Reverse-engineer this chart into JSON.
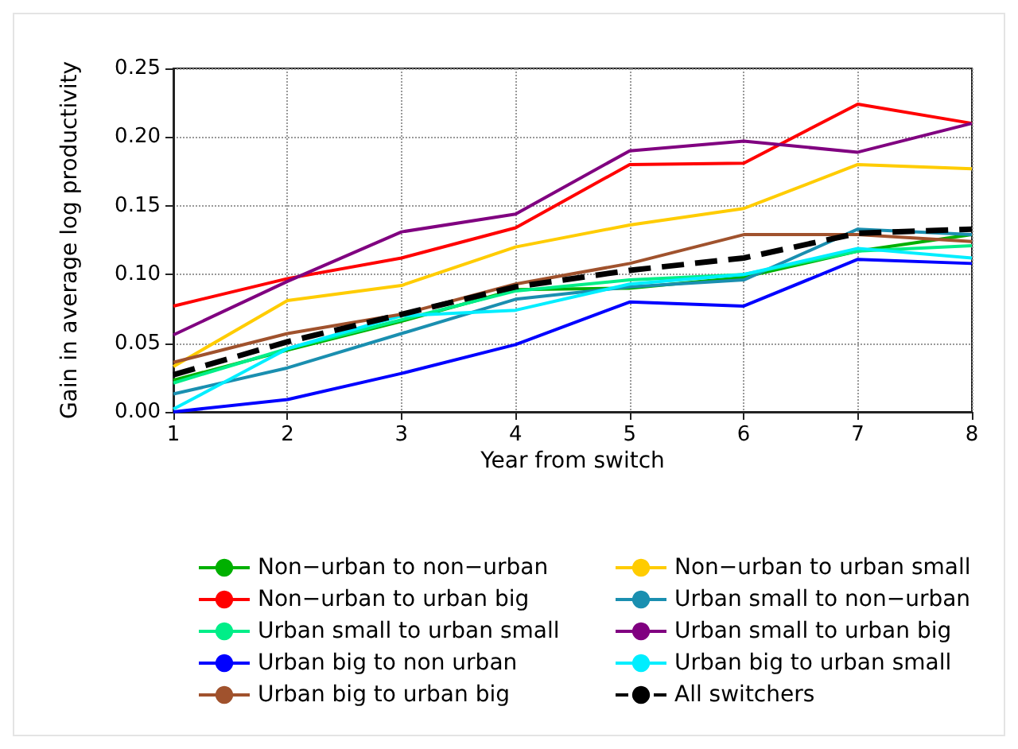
{
  "chart_data": {
    "type": "line",
    "xlabel": "Year from switch",
    "ylabel": "Gain in average log productivity",
    "x": [
      1,
      2,
      3,
      4,
      5,
      6,
      7,
      8
    ],
    "xlim": [
      1,
      8
    ],
    "xticks": [
      1,
      2,
      3,
      4,
      5,
      6,
      7,
      8
    ],
    "ylim": [
      0,
      0.25
    ],
    "yticks": [
      {
        "value": 0,
        "label": "0.00"
      },
      {
        "value": 0.05,
        "label": "0.05"
      },
      {
        "value": 0.1,
        "label": "0.10"
      },
      {
        "value": 0.15,
        "label": "0.15"
      },
      {
        "value": 0.2,
        "label": "0.20"
      },
      {
        "value": 0.25,
        "label": "0.25"
      }
    ],
    "grid": true,
    "legend": "bottom",
    "marker": "none",
    "series": [
      {
        "name": "Non−urban to non−urban",
        "color": "#00b000",
        "values": [
          0.023,
          0.045,
          0.066,
          0.089,
          0.09,
          0.098,
          0.117,
          0.129
        ]
      },
      {
        "name": "Non−urban to urban small",
        "color": "#ffcc00",
        "values": [
          0.033,
          0.081,
          0.092,
          0.12,
          0.136,
          0.148,
          0.18,
          0.177
        ]
      },
      {
        "name": "Non−urban to urban big",
        "color": "#ff0000",
        "values": [
          0.077,
          0.097,
          0.112,
          0.134,
          0.18,
          0.181,
          0.224,
          0.21
        ]
      },
      {
        "name": "Urban small to non−urban",
        "color": "#1a8fb0",
        "values": [
          0.013,
          0.032,
          0.057,
          0.082,
          0.091,
          0.096,
          0.133,
          0.129
        ]
      },
      {
        "name": "Urban small to urban small",
        "color": "#00ee88",
        "values": [
          0.021,
          0.046,
          0.067,
          0.088,
          0.096,
          0.1,
          0.117,
          0.121
        ]
      },
      {
        "name": "Urban small to urban big",
        "color": "#800080",
        "values": [
          0.056,
          0.095,
          0.131,
          0.144,
          0.19,
          0.197,
          0.189,
          0.21
        ]
      },
      {
        "name": "Urban big to non urban",
        "color": "#0000ff",
        "values": [
          0,
          0.009,
          0.028,
          0.049,
          0.08,
          0.077,
          0.111,
          0.108
        ]
      },
      {
        "name": "Urban big to urban small",
        "color": "#00eeff",
        "values": [
          0.002,
          0.046,
          0.07,
          0.074,
          0.093,
          0.1,
          0.119,
          0.112
        ]
      },
      {
        "name": "Urban big to urban big",
        "color": "#a0522d",
        "values": [
          0.036,
          0.057,
          0.071,
          0.093,
          0.108,
          0.129,
          0.129,
          0.124
        ]
      },
      {
        "name": "All switchers",
        "color": "#000000",
        "line_style": "dashed",
        "values": [
          0.027,
          0.051,
          0.071,
          0.091,
          0.103,
          0.112,
          0.13,
          0.133
        ]
      }
    ]
  }
}
